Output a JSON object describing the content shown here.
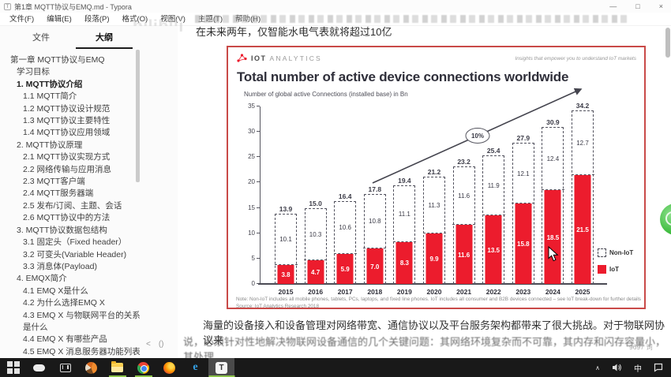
{
  "window": {
    "title": "第1章 MQTT协议与EMQ.md - Typora",
    "app_icon": "T",
    "controls": [
      {
        "name": "minimize",
        "glyph": "—"
      },
      {
        "name": "maximize",
        "glyph": "□"
      },
      {
        "name": "close",
        "glyph": "×"
      }
    ]
  },
  "menu": {
    "items": [
      "文件(F)",
      "编辑(E)",
      "段落(P)",
      "格式(O)",
      "视图(V)",
      "主题(T)",
      "帮助(H)"
    ]
  },
  "sidebar": {
    "tabs": [
      {
        "label": "文件",
        "active": false
      },
      {
        "label": "大纲",
        "active": true
      }
    ],
    "outline": [
      {
        "label": "第一章 MQTT协议与EMQ",
        "level": 0
      },
      {
        "label": "学习目标",
        "level": 1
      },
      {
        "label": "1. MQTT协议介绍",
        "level": 1,
        "bold": true
      },
      {
        "label": "1.1 MQTT简介",
        "level": 2
      },
      {
        "label": "1.2 MQTT协议设计规范",
        "level": 2
      },
      {
        "label": "1.3 MQTT协议主要特性",
        "level": 2
      },
      {
        "label": "1.4 MQTT协议应用领域",
        "level": 2
      },
      {
        "label": "2. MQTT协议原理",
        "level": 1
      },
      {
        "label": "2.1 MQTT协议实现方式",
        "level": 2
      },
      {
        "label": "2.2 网络传输与应用消息",
        "level": 2
      },
      {
        "label": "2.3 MQTT客户端",
        "level": 2
      },
      {
        "label": "2.4 MQTT服务器端",
        "level": 2
      },
      {
        "label": "2.5 发布/订阅、主题、会话",
        "level": 2
      },
      {
        "label": "2.6 MQTT协议中的方法",
        "level": 2
      },
      {
        "label": "3. MQTT协议数据包结构",
        "level": 1
      },
      {
        "label": "3.1 固定头（Fixed header）",
        "level": 2
      },
      {
        "label": "3.2 可变头(Variable Header)",
        "level": 2
      },
      {
        "label": "3.3 消息体(Payload)",
        "level": 2
      },
      {
        "label": "4. EMQX简介",
        "level": 1
      },
      {
        "label": "4.1 EMQ X是什么",
        "level": 2
      },
      {
        "label": "4.2 为什么选择EMQ X",
        "level": 2
      },
      {
        "label": "4.3 EMQ X 与物联网平台的关系是什么",
        "level": 2,
        "wrap": true
      },
      {
        "label": "4.4 EMQ X 有哪些产品",
        "level": 2
      },
      {
        "label": "4.5 EMQ X 消息服务器功能列表",
        "level": 2
      }
    ],
    "footer_icons": [
      {
        "name": "collapse-sidebar",
        "glyph": "<"
      },
      {
        "name": "source-mode",
        "glyph": "()"
      }
    ]
  },
  "document": {
    "intro_line": "在未来两年，仅智能水电气表就将超过10亿",
    "para_line1": "海量的设备接入和设备管理对网络带宽、通信协议以及平台服务架构都带来了很大挑战。对于物联网协议来",
    "para_line2": "说，必须针对性地解决物联网设备通信的几个关键问题：其网络环境复杂而不可靠，其内存和闪存容量小，其处理",
    "word_count": "9697 词",
    "watermark": "bilibili"
  },
  "chart": {
    "brand": {
      "word1": "IOT",
      "word2": "ANALYTICS",
      "tagline": "Insights that empower you to understand IoT markets"
    }
  },
  "chart_data": {
    "type": "bar",
    "title": "Total number of active device connections worldwide",
    "subtitle": "Number of global active Connections (installed base) in Bn",
    "categories": [
      "2015",
      "2016",
      "2017",
      "2018",
      "2019",
      "2020",
      "2021",
      "2022",
      "2023",
      "2024",
      "2025"
    ],
    "totals": [
      13.9,
      15.0,
      16.4,
      17.8,
      19.4,
      21.2,
      23.2,
      25.4,
      27.9,
      30.9,
      34.2
    ],
    "series": [
      {
        "name": "IoT",
        "style": "solid",
        "color": "#ec1c2d",
        "values": [
          3.8,
          4.7,
          5.9,
          7.0,
          8.3,
          9.9,
          11.6,
          13.5,
          15.8,
          18.5,
          21.5
        ]
      },
      {
        "name": "Non-IoT",
        "style": "dashed",
        "values": [
          10.1,
          10.3,
          10.6,
          10.8,
          11.1,
          11.3,
          11.6,
          11.9,
          12.1,
          12.4,
          12.7
        ]
      }
    ],
    "ylim": [
      0,
      35
    ],
    "yticks": [
      0,
      5,
      10,
      15,
      20,
      25,
      30,
      35
    ],
    "growth_annotation": "10%",
    "legend_position": "right",
    "grid": false,
    "note": "Note: Non-IoT includes all mobile phones, tablets, PCs, laptops, and fixed line phones. IoT includes all consumer and B2B devices connected – see IoT break-down for further details",
    "source": "Source: IoT Analytics Research 2018"
  },
  "taskbar": {
    "apps": [
      {
        "name": "start"
      },
      {
        "name": "search"
      },
      {
        "name": "task-view"
      },
      {
        "name": "sogou-browser"
      },
      {
        "name": "file-explorer",
        "running": true
      },
      {
        "name": "chrome",
        "running": true
      },
      {
        "name": "firefox"
      },
      {
        "name": "edge",
        "glyph": "e"
      },
      {
        "name": "typora",
        "glyph": "T",
        "active": true
      }
    ],
    "tray": {
      "expand_glyph": "∧",
      "ime": "中"
    }
  }
}
